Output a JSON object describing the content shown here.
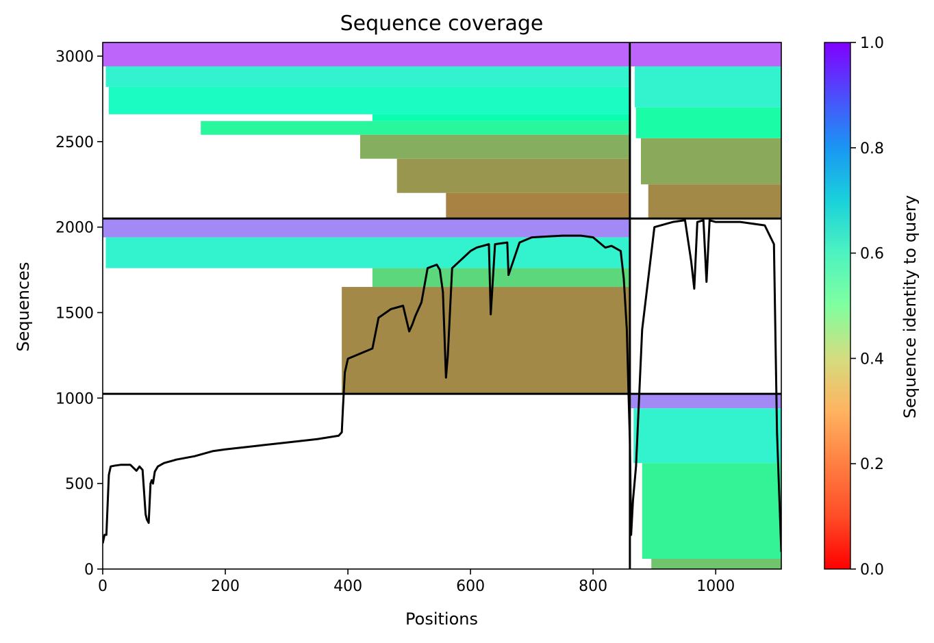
{
  "chart_data": {
    "type": "heatmap",
    "title": "Sequence coverage",
    "xlabel": "Positions",
    "ylabel": "Sequences",
    "xlim": [
      0,
      1107
    ],
    "ylim": [
      0,
      3080
    ],
    "xticks": [
      "0",
      "200",
      "400",
      "600",
      "800",
      "1000"
    ],
    "xtick_values": [
      0,
      200,
      400,
      600,
      800,
      1000
    ],
    "yticks": [
      "0",
      "500",
      "1000",
      "1500",
      "2000",
      "2500",
      "3000"
    ],
    "ytick_values": [
      0,
      500,
      1000,
      1500,
      2000,
      2500,
      3000
    ],
    "colorbar": {
      "label": "Sequence identity to query",
      "colormap": "rainbow_r",
      "range": [
        0,
        1
      ],
      "ticks": [
        "0.0",
        "0.2",
        "0.4",
        "0.6",
        "0.8",
        "1.0"
      ],
      "tick_values": [
        0,
        0.2,
        0.4,
        0.6,
        0.8,
        1.0
      ]
    },
    "chain_boundaries": {
      "x": [
        860
      ],
      "y": [
        1025,
        2050
      ]
    },
    "blocks": [
      {
        "x0": 0,
        "x1": 860,
        "y0": 2050,
        "y1": 3080,
        "bands": [
          {
            "y0": 2940,
            "y1": 3080,
            "start": 0,
            "identity": 0.87
          },
          {
            "y0": 2820,
            "y1": 2940,
            "start": 5,
            "identity": 0.6
          },
          {
            "y0": 2660,
            "y1": 2820,
            "start": 10,
            "identity": 0.55
          },
          {
            "y0": 2620,
            "y1": 2660,
            "start": 440,
            "identity": 0.48
          },
          {
            "y0": 2540,
            "y1": 2620,
            "start": 160,
            "identity": 0.42
          },
          {
            "y0": 2400,
            "y1": 2540,
            "start": 420,
            "identity": 0.24
          },
          {
            "y0": 2200,
            "y1": 2400,
            "start": 480,
            "identity": 0.2
          },
          {
            "y0": 2050,
            "y1": 2200,
            "start": 560,
            "identity": 0.17
          }
        ]
      },
      {
        "x0": 860,
        "x1": 1107,
        "y0": 2050,
        "y1": 3080,
        "bands": [
          {
            "y0": 2940,
            "y1": 3080,
            "start": 862,
            "identity": 0.87
          },
          {
            "y0": 2700,
            "y1": 2940,
            "start": 868,
            "identity": 0.6
          },
          {
            "y0": 2520,
            "y1": 2700,
            "start": 870,
            "identity": 0.45
          },
          {
            "y0": 2250,
            "y1": 2520,
            "start": 878,
            "identity": 0.23
          },
          {
            "y0": 2050,
            "y1": 2250,
            "start": 890,
            "identity": 0.18
          }
        ]
      },
      {
        "x0": 0,
        "x1": 860,
        "y0": 1025,
        "y1": 2050,
        "bands": [
          {
            "y0": 1940,
            "y1": 2050,
            "start": 0,
            "identity": 0.82
          },
          {
            "y0": 1760,
            "y1": 1940,
            "start": 5,
            "identity": 0.6
          },
          {
            "y0": 1650,
            "y1": 1760,
            "start": 440,
            "identity": 0.32
          },
          {
            "y0": 1025,
            "y1": 1650,
            "start": 390,
            "identity": 0.18
          }
        ]
      },
      {
        "x0": 860,
        "x1": 1107,
        "y0": 0,
        "y1": 1025,
        "bands": [
          {
            "y0": 940,
            "y1": 1025,
            "start": 862,
            "identity": 0.82
          },
          {
            "y0": 620,
            "y1": 940,
            "start": 866,
            "identity": 0.6
          },
          {
            "y0": 60,
            "y1": 620,
            "start": 880,
            "identity": 0.4
          },
          {
            "y0": 0,
            "y1": 60,
            "start": 895,
            "identity": 0.28
          }
        ]
      }
    ],
    "coverage": {
      "x": [
        0,
        3,
        6,
        10,
        13,
        20,
        30,
        45,
        55,
        60,
        65,
        70,
        72,
        75,
        78,
        80,
        82,
        85,
        90,
        100,
        120,
        150,
        180,
        200,
        250,
        300,
        350,
        385,
        390,
        392,
        395,
        400,
        420,
        440,
        450,
        470,
        490,
        500,
        505,
        510,
        520,
        530,
        545,
        550,
        555,
        560,
        563,
        570,
        600,
        610,
        630,
        633,
        640,
        660,
        662,
        680,
        700,
        750,
        780,
        800,
        820,
        830,
        845,
        850,
        855,
        858,
        860,
        862,
        865,
        870,
        880,
        900,
        930,
        950,
        960,
        965,
        970,
        980,
        985,
        990,
        1000,
        1040,
        1080,
        1095,
        1100,
        1105,
        1107
      ],
      "y": [
        150,
        200,
        200,
        550,
        600,
        605,
        610,
        610,
        575,
        600,
        580,
        320,
        290,
        270,
        500,
        520,
        500,
        570,
        600,
        620,
        640,
        660,
        690,
        700,
        720,
        740,
        760,
        780,
        800,
        950,
        1150,
        1230,
        1260,
        1290,
        1470,
        1520,
        1540,
        1390,
        1430,
        1480,
        1560,
        1760,
        1780,
        1750,
        1620,
        1120,
        1250,
        1760,
        1860,
        1880,
        1900,
        1490,
        1900,
        1910,
        1720,
        1910,
        1940,
        1950,
        1950,
        1940,
        1880,
        1890,
        1860,
        1700,
        1400,
        1000,
        750,
        200,
        400,
        600,
        1400,
        2000,
        2030,
        2040,
        1800,
        1640,
        2030,
        2040,
        1680,
        2040,
        2030,
        2030,
        2010,
        1900,
        800,
        300,
        100
      ]
    }
  }
}
